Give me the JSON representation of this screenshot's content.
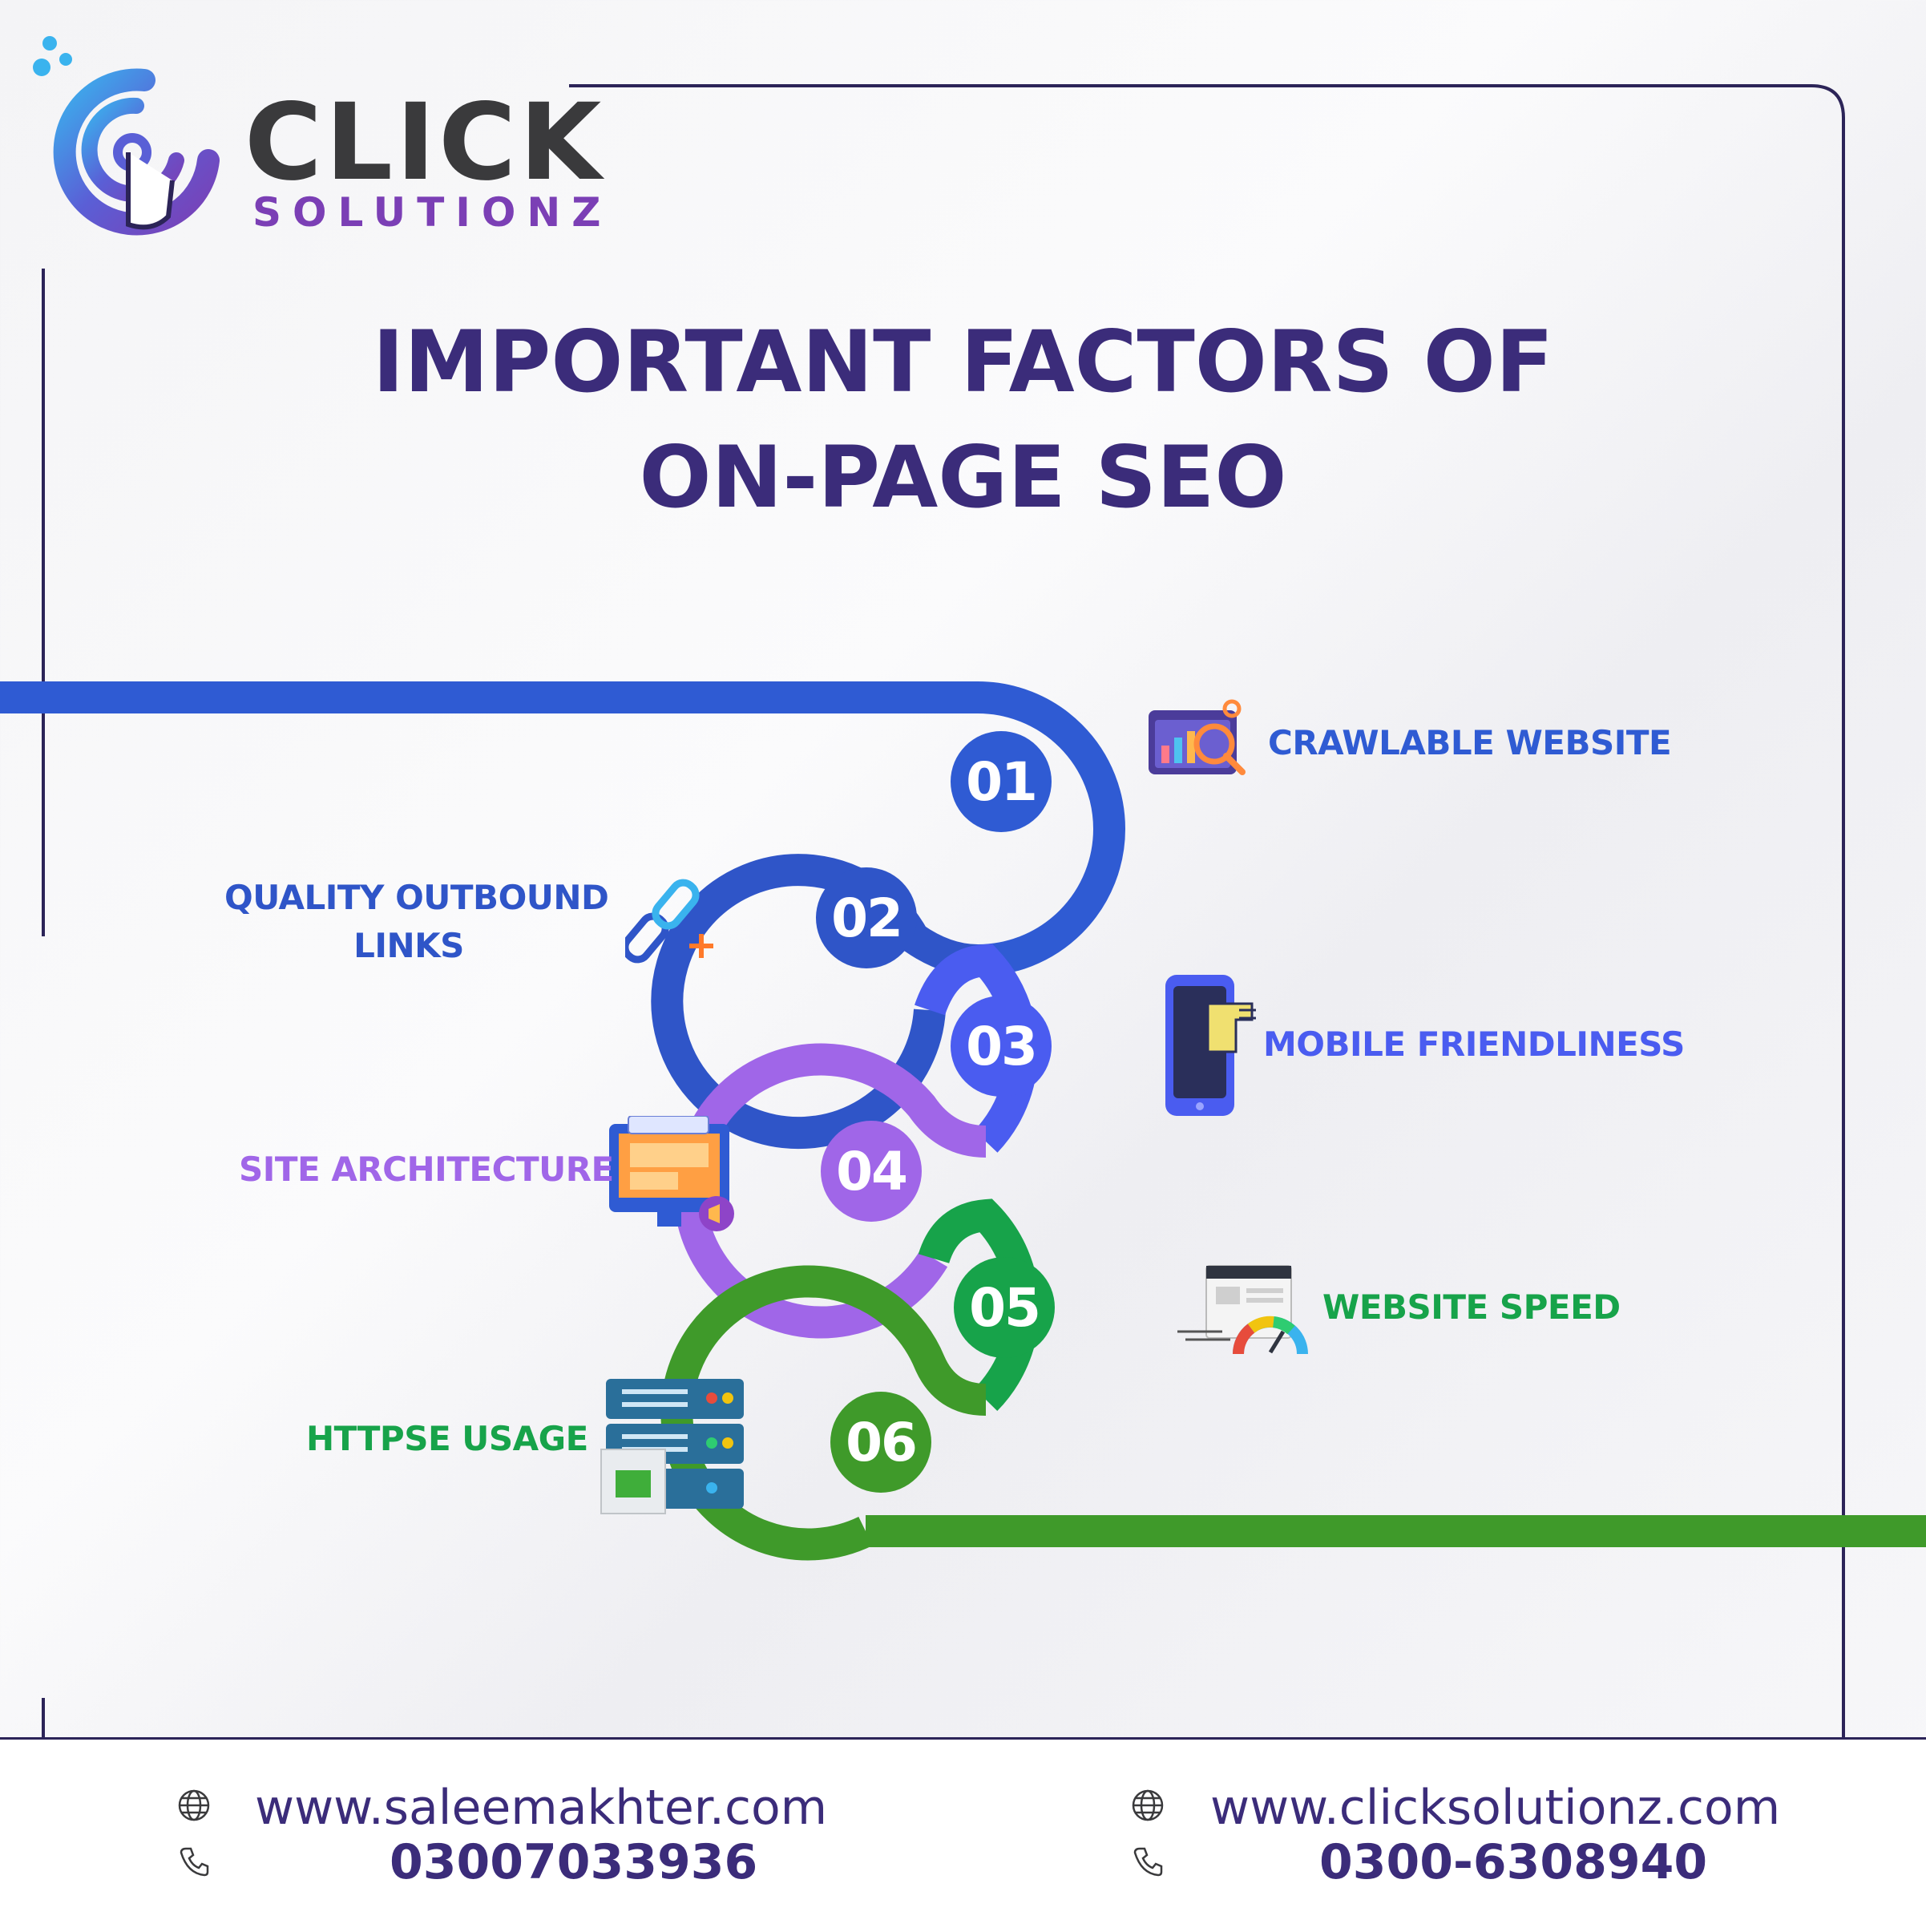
{
  "logo": {
    "word1": "CLICK",
    "word2": "SOLUTIONZ"
  },
  "title": {
    "line1": "IMPORTANT FACTORS OF",
    "line2": "ON-PAGE SEO"
  },
  "factors": [
    {
      "number": "01",
      "label": "CRAWLABLE WEBSITE",
      "color": "#2f5bd3",
      "icon": "crawl-analytics-icon"
    },
    {
      "number": "02",
      "label_line1": "QUALITY OUTBOUND",
      "label_line2": "LINKS",
      "color": "#2f55c8",
      "icon": "chain-link-icon"
    },
    {
      "number": "03",
      "label": "MOBILE FRIENDLINESS",
      "color": "#4a5cf0",
      "icon": "mobile-phone-icon"
    },
    {
      "number": "04",
      "label": "SITE ARCHITECTURE",
      "color": "#a066e8",
      "icon": "monitor-layout-icon"
    },
    {
      "number": "05",
      "label": "WEBSITE SPEED",
      "color": "#17a34a",
      "icon": "speed-gauge-icon"
    },
    {
      "number": "06",
      "label": "HTTPSE USAGE",
      "color": "#3f9a2a",
      "icon": "server-stack-icon"
    }
  ],
  "footer": {
    "left": {
      "website": "www.saleemakhter.com",
      "phone": "03007033936"
    },
    "right": {
      "website": "www.clicksolutionz.com",
      "phone": "0300-6308940"
    }
  }
}
